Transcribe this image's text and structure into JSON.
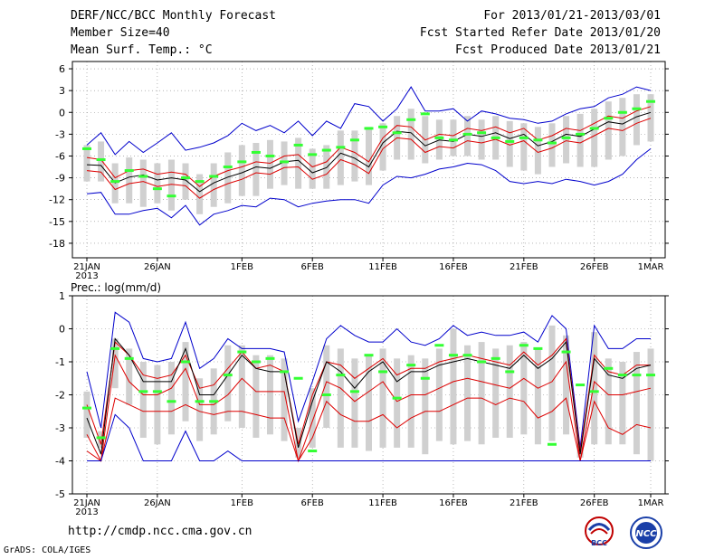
{
  "header": {
    "title": "DERF/NCC/BCC Monthly Forecast",
    "member_size": "Member Size=40",
    "variable1": "Mean Surf. Temp.: °C",
    "period": "For 2013/01/21-2013/03/01",
    "started": "Fcst Started Refer Date 2013/01/20",
    "produced": "Fcst Produced Date 2013/01/21"
  },
  "footer": {
    "url": "http://cmdp.ncc.cma.gov.cn",
    "credit": "GrADS: COLA/IGES",
    "logo_left": "BCC",
    "logo_right": "NCC"
  },
  "colors": {
    "ensemble_max_min": "#0000cc",
    "percentile": "#dd0000",
    "mean": "#000000",
    "member_bar": "#d0d0d0",
    "marker": "#33ff33"
  },
  "chart_data": [
    {
      "type": "line",
      "title": "Mean Surf. Temp.: °C",
      "x_tick_labels": [
        "21JAN",
        "26JAN",
        "1FEB",
        "6FEB",
        "11FEB",
        "16FEB",
        "21FEB",
        "26FEB",
        "1MAR"
      ],
      "x_tick_days": [
        0,
        5,
        11,
        16,
        21,
        26,
        31,
        36,
        40
      ],
      "year_label": "2013",
      "ylim": [
        -20,
        7
      ],
      "yticks": [
        6,
        3,
        0,
        -3,
        -6,
        -9,
        -12,
        -15,
        -18
      ],
      "series": [
        {
          "name": "max",
          "values": [
            -4.5,
            -2.8,
            -5.8,
            -4.0,
            -5.5,
            -4.2,
            -2.8,
            -5.2,
            -4.8,
            -4.2,
            -3.2,
            -1.5,
            -2.5,
            -1.8,
            -2.8,
            -1.2,
            -3.2,
            -1.2,
            -2.2,
            1.2,
            0.8,
            -1.2,
            0.5,
            3.5,
            0.2,
            0.2,
            0.5,
            -1.2,
            0.2,
            -0.2,
            -0.8,
            -1.0,
            -1.5,
            -1.2,
            -0.2,
            0.5,
            0.8,
            2.0,
            2.5,
            3.5,
            3.0
          ]
        },
        {
          "name": "p75",
          "values": [
            -6.2,
            -6.5,
            -9.0,
            -8.0,
            -7.8,
            -8.5,
            -8.2,
            -8.5,
            -10.2,
            -8.8,
            -8.0,
            -7.5,
            -6.8,
            -7.0,
            -6.0,
            -5.8,
            -7.5,
            -6.8,
            -4.8,
            -5.5,
            -6.8,
            -3.5,
            -1.8,
            -2.0,
            -3.8,
            -3.0,
            -3.2,
            -2.2,
            -2.5,
            -2.0,
            -2.8,
            -2.2,
            -3.8,
            -3.2,
            -2.2,
            -2.5,
            -1.5,
            -0.5,
            -0.8,
            0.2,
            0.8
          ]
        },
        {
          "name": "mean",
          "values": [
            -7.2,
            -7.3,
            -9.7,
            -8.9,
            -8.6,
            -9.3,
            -9.0,
            -9.3,
            -10.9,
            -9.7,
            -8.9,
            -8.3,
            -7.5,
            -7.7,
            -6.8,
            -6.6,
            -8.3,
            -7.6,
            -5.6,
            -6.3,
            -7.5,
            -4.2,
            -2.6,
            -2.8,
            -4.6,
            -3.8,
            -4.0,
            -3.0,
            -3.3,
            -2.8,
            -3.6,
            -3.0,
            -4.6,
            -4.0,
            -3.0,
            -3.3,
            -2.3,
            -1.3,
            -1.6,
            -0.6,
            0.0
          ]
        },
        {
          "name": "p25",
          "values": [
            -8.0,
            -8.2,
            -10.6,
            -9.8,
            -9.5,
            -10.2,
            -9.9,
            -10.1,
            -11.8,
            -10.6,
            -9.8,
            -9.2,
            -8.3,
            -8.5,
            -7.6,
            -7.5,
            -9.2,
            -8.5,
            -6.5,
            -7.2,
            -8.4,
            -5.0,
            -3.5,
            -3.7,
            -5.5,
            -4.7,
            -4.9,
            -3.9,
            -4.2,
            -3.7,
            -4.5,
            -3.9,
            -5.5,
            -4.9,
            -3.9,
            -4.2,
            -3.2,
            -2.2,
            -2.5,
            -1.5,
            -0.8
          ]
        },
        {
          "name": "min",
          "values": [
            -11.2,
            -11.0,
            -14.0,
            -14.0,
            -13.5,
            -13.2,
            -14.5,
            -12.8,
            -15.5,
            -14.0,
            -13.5,
            -12.8,
            -13.0,
            -11.8,
            -12.0,
            -13.0,
            -12.5,
            -12.2,
            -12.0,
            -12.0,
            -12.5,
            -10.0,
            -8.8,
            -9.0,
            -8.5,
            -7.8,
            -7.5,
            -7.0,
            -7.2,
            -8.0,
            -9.5,
            -9.8,
            -9.5,
            -9.8,
            -9.2,
            -9.5,
            -10.0,
            -9.5,
            -8.5,
            -6.5,
            -5.0
          ]
        },
        {
          "name": "member_high",
          "values": [
            -4.5,
            -4.0,
            -7.0,
            -6.2,
            -6.5,
            -7.0,
            -6.5,
            -7.0,
            -8.5,
            -7.0,
            -5.5,
            -4.5,
            -4.2,
            -3.8,
            -4.0,
            -3.5,
            -5.0,
            -4.5,
            -2.5,
            -2.5,
            -2.0,
            -1.5,
            -0.5,
            0.5,
            -0.5,
            -1.0,
            -1.0,
            -0.5,
            -1.0,
            -0.5,
            -1.2,
            -1.5,
            -2.0,
            -1.5,
            -0.5,
            -0.2,
            0.5,
            1.5,
            2.0,
            2.5,
            2.5
          ]
        },
        {
          "name": "member_low",
          "values": [
            -9.5,
            -9.5,
            -12.5,
            -12.5,
            -13.0,
            -12.5,
            -13.5,
            -12.0,
            -14.0,
            -13.0,
            -12.5,
            -11.5,
            -11.5,
            -10.5,
            -10.0,
            -10.5,
            -10.5,
            -10.5,
            -10.0,
            -9.5,
            -10.0,
            -8.0,
            -6.5,
            -6.5,
            -7.0,
            -6.5,
            -6.0,
            -6.0,
            -6.5,
            -6.5,
            -7.5,
            -8.0,
            -8.5,
            -7.5,
            -7.0,
            -7.5,
            -7.5,
            -6.5,
            -6.0,
            -4.5,
            -4.0
          ]
        },
        {
          "name": "observed",
          "values": [
            -5.0,
            -6.5,
            -9.5,
            -8.0,
            -8.8,
            -10.5,
            -11.5,
            -9.0,
            -9.5,
            -8.8,
            -7.5,
            -6.8,
            -5.5,
            -6.0,
            -6.8,
            -4.5,
            -5.8,
            -5.2,
            -4.8,
            -3.8,
            -2.2,
            -2.0,
            -2.8,
            -1.0,
            -0.2,
            -3.5,
            -3.8,
            -3.0,
            -2.8,
            -3.5,
            -4.0,
            -3.5,
            -3.8,
            -4.2,
            -3.5,
            -3.0,
            -2.2,
            -0.8,
            0.0,
            0.5,
            1.5
          ]
        }
      ]
    },
    {
      "type": "line",
      "title": "Prec.: log(mm/d)",
      "x_tick_labels": [
        "21JAN",
        "26JAN",
        "1FEB",
        "6FEB",
        "11FEB",
        "16FEB",
        "21FEB",
        "26FEB",
        "1MAR"
      ],
      "x_tick_days": [
        0,
        5,
        11,
        16,
        21,
        26,
        31,
        36,
        40
      ],
      "year_label": "2013",
      "ylim": [
        -5,
        1
      ],
      "yticks": [
        1,
        0,
        -1,
        -2,
        -3,
        -4,
        -5
      ],
      "series": [
        {
          "name": "max",
          "values": [
            -1.3,
            -3.0,
            0.5,
            0.2,
            -0.9,
            -1.0,
            -0.9,
            0.2,
            -1.2,
            -0.9,
            -0.3,
            -0.6,
            -0.6,
            -0.6,
            -0.7,
            -2.8,
            -1.6,
            -0.3,
            0.1,
            -0.2,
            -0.4,
            -0.4,
            0.0,
            -0.4,
            -0.5,
            -0.3,
            0.1,
            -0.2,
            -0.1,
            -0.2,
            -0.2,
            -0.1,
            -0.4,
            0.4,
            0.0,
            -3.6,
            0.1,
            -0.6,
            -0.6,
            -0.3,
            -0.3
          ]
        },
        {
          "name": "p75",
          "values": [
            -2.3,
            -3.5,
            -0.4,
            -0.8,
            -1.4,
            -1.5,
            -1.4,
            -0.8,
            -1.8,
            -1.7,
            -1.2,
            -0.7,
            -1.2,
            -1.1,
            -1.3,
            -3.5,
            -2.0,
            -1.0,
            -1.1,
            -1.5,
            -1.2,
            -0.9,
            -1.4,
            -1.2,
            -1.2,
            -1.0,
            -0.9,
            -0.8,
            -0.9,
            -1.0,
            -1.1,
            -0.7,
            -1.1,
            -0.8,
            -0.3,
            -3.7,
            -0.8,
            -1.3,
            -1.4,
            -1.1,
            -1.1
          ]
        },
        {
          "name": "mean",
          "values": [
            -2.7,
            -3.8,
            -0.3,
            -0.8,
            -1.6,
            -1.6,
            -1.6,
            -0.6,
            -2.0,
            -2.0,
            -1.4,
            -0.8,
            -1.2,
            -1.3,
            -1.3,
            -3.6,
            -2.2,
            -1.0,
            -1.3,
            -1.8,
            -1.3,
            -1.0,
            -1.6,
            -1.3,
            -1.3,
            -1.1,
            -1.0,
            -0.9,
            -1.0,
            -1.1,
            -1.2,
            -0.8,
            -1.2,
            -0.9,
            -0.4,
            -3.8,
            -0.9,
            -1.4,
            -1.5,
            -1.2,
            -1.1
          ]
        },
        {
          "name": "p25",
          "values": [
            -3.2,
            -4.0,
            -0.8,
            -1.6,
            -2.0,
            -2.0,
            -1.8,
            -1.2,
            -2.3,
            -2.3,
            -2.0,
            -1.5,
            -1.9,
            -1.9,
            -1.9,
            -4.0,
            -2.8,
            -1.6,
            -1.8,
            -2.2,
            -1.9,
            -1.6,
            -2.2,
            -2.0,
            -2.0,
            -1.8,
            -1.6,
            -1.5,
            -1.6,
            -1.7,
            -1.8,
            -1.5,
            -1.8,
            -1.6,
            -1.0,
            -4.0,
            -1.6,
            -2.0,
            -2.0,
            -1.9,
            -1.8
          ]
        },
        {
          "name": "p10",
          "values": [
            -3.7,
            -4.0,
            -2.1,
            -2.3,
            -2.5,
            -2.5,
            -2.5,
            -2.3,
            -2.5,
            -2.6,
            -2.5,
            -2.5,
            -2.6,
            -2.7,
            -2.7,
            -4.0,
            -3.3,
            -2.2,
            -2.6,
            -2.8,
            -2.8,
            -2.6,
            -3.0,
            -2.7,
            -2.5,
            -2.5,
            -2.3,
            -2.1,
            -2.1,
            -2.3,
            -2.1,
            -2.2,
            -2.7,
            -2.5,
            -2.1,
            -4.0,
            -2.2,
            -3.0,
            -3.2,
            -2.9,
            -3.0
          ]
        },
        {
          "name": "min",
          "values": [
            -4.0,
            -4.0,
            -2.6,
            -3.0,
            -4.0,
            -4.0,
            -4.0,
            -3.1,
            -4.0,
            -4.0,
            -3.7,
            -4.0,
            -4.0,
            -4.0,
            -4.0,
            -4.0,
            -4.0,
            -4.0,
            -4.0,
            -4.0,
            -4.0,
            -4.0,
            -4.0,
            -4.0,
            -4.0,
            -4.0,
            -4.0,
            -4.0,
            -4.0,
            -4.0,
            -4.0,
            -4.0,
            -4.0,
            -4.0,
            -4.0,
            -4.0,
            -4.0,
            -4.0,
            -4.0,
            -4.0,
            -4.0
          ]
        },
        {
          "name": "member_high",
          "values": [
            -1.9,
            -3.1,
            -0.3,
            -0.6,
            -1.0,
            -1.1,
            -1.0,
            -0.4,
            -1.5,
            -1.2,
            -0.5,
            -0.5,
            -0.8,
            -0.8,
            -0.9,
            -3.0,
            -1.8,
            -0.5,
            -0.6,
            -0.9,
            -0.8,
            -0.6,
            -0.9,
            -0.8,
            -0.9,
            -0.6,
            0.0,
            -0.5,
            -0.4,
            -0.6,
            -0.5,
            -0.4,
            -0.6,
            0.1,
            -0.2,
            -3.4,
            -0.1,
            -0.9,
            -1.0,
            -0.7,
            -0.6
          ]
        },
        {
          "name": "member_low",
          "values": [
            -3.3,
            -3.6,
            -1.8,
            -2.3,
            -3.3,
            -3.5,
            -3.2,
            -2.8,
            -3.4,
            -3.2,
            -2.8,
            -3.0,
            -3.3,
            -3.2,
            -3.4,
            -3.9,
            -3.6,
            -3.0,
            -3.6,
            -3.6,
            -3.7,
            -3.6,
            -3.6,
            -3.6,
            -3.8,
            -3.4,
            -3.5,
            -3.4,
            -3.5,
            -3.3,
            -3.3,
            -3.2,
            -3.5,
            -3.4,
            -3.2,
            -3.9,
            -3.5,
            -3.5,
            -3.5,
            -3.8,
            -4.0
          ]
        },
        {
          "name": "observed",
          "values": [
            -2.4,
            -3.3,
            -0.6,
            -0.9,
            -1.9,
            -1.9,
            -2.2,
            -1.0,
            -2.2,
            -2.2,
            -1.4,
            -0.7,
            -1.0,
            -0.9,
            -1.3,
            -1.5,
            -3.7,
            -2.0,
            -1.4,
            -1.9,
            -0.8,
            -1.3,
            -2.1,
            -1.1,
            -1.5,
            -0.5,
            -0.8,
            -0.8,
            -1.0,
            -0.9,
            -1.3,
            -0.5,
            -0.6,
            -3.5,
            -0.7,
            -1.7,
            -1.9,
            -1.2,
            -1.4,
            -1.4,
            -1.4
          ]
        }
      ]
    }
  ]
}
